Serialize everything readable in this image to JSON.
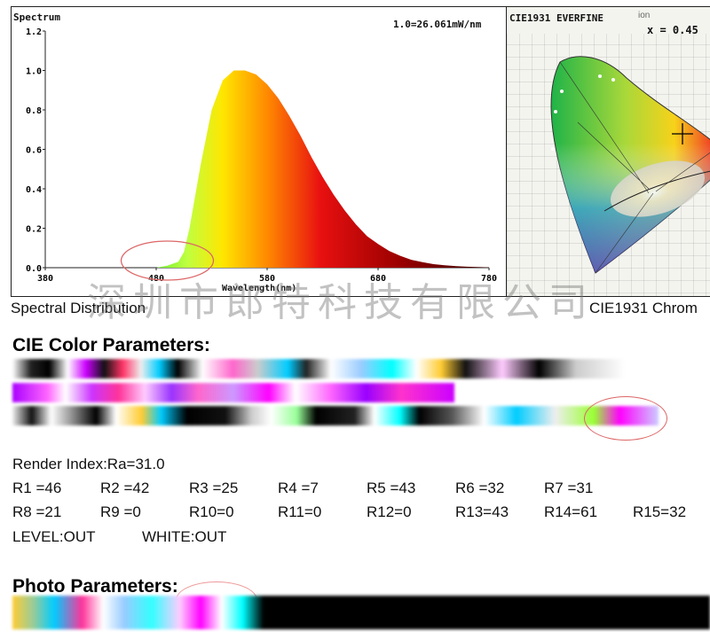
{
  "spectrum": {
    "title": "Spectrum",
    "scale_note": "1.0=26.061mW/nm",
    "xlabel": "Wavelength(nm)",
    "y_ticks": [
      "1.2",
      "1.0",
      "0.8",
      "0.6",
      "0.4",
      "0.2",
      "0.0"
    ],
    "x_ticks": [
      "380",
      "480",
      "580",
      "680",
      "780"
    ],
    "caption": "Spectral Distribution"
  },
  "cie_panel": {
    "title": "CIE1931 EVERFINE",
    "overlap_text": "ion",
    "x_readout": "x = 0.45",
    "caption": "CIE1931 Chrom"
  },
  "watermark": "深圳市郎特科技有限公司",
  "cie_params": {
    "title": "CIE Color Parameters:"
  },
  "render": {
    "ra_line": "Render Index:Ra=31.0",
    "row1": [
      "R1 =46",
      "R2 =42",
      "R3 =25",
      "R4 =7",
      "R5 =43",
      "R6 =32",
      "R7 =31"
    ],
    "row2": [
      "R8 =21",
      "R9 =0",
      "R10=0",
      "R11=0",
      "R12=0",
      "R13=43",
      "R14=61",
      "R15=32"
    ],
    "level": "LEVEL:OUT",
    "white": "WHITE:OUT"
  },
  "photo": {
    "title": "Photo Parameters:"
  },
  "chart_data": {
    "type": "area",
    "title": "Spectrum",
    "xlabel": "Wavelength(nm)",
    "ylabel": "",
    "xlim": [
      380,
      780
    ],
    "ylim": [
      0,
      1.2
    ],
    "annotation": "1.0=26.061mW/nm",
    "x": [
      380,
      480,
      490,
      500,
      505,
      510,
      520,
      530,
      540,
      550,
      560,
      570,
      580,
      590,
      600,
      610,
      620,
      630,
      640,
      650,
      660,
      670,
      680,
      690,
      700,
      710,
      720,
      730,
      740,
      750,
      760,
      770,
      780
    ],
    "values": [
      0.0,
      0.0,
      0.01,
      0.03,
      0.08,
      0.2,
      0.52,
      0.8,
      0.95,
      1.0,
      1.0,
      0.98,
      0.93,
      0.86,
      0.77,
      0.67,
      0.56,
      0.46,
      0.37,
      0.29,
      0.22,
      0.16,
      0.12,
      0.085,
      0.06,
      0.04,
      0.028,
      0.018,
      0.012,
      0.008,
      0.005,
      0.003,
      0.002
    ]
  }
}
